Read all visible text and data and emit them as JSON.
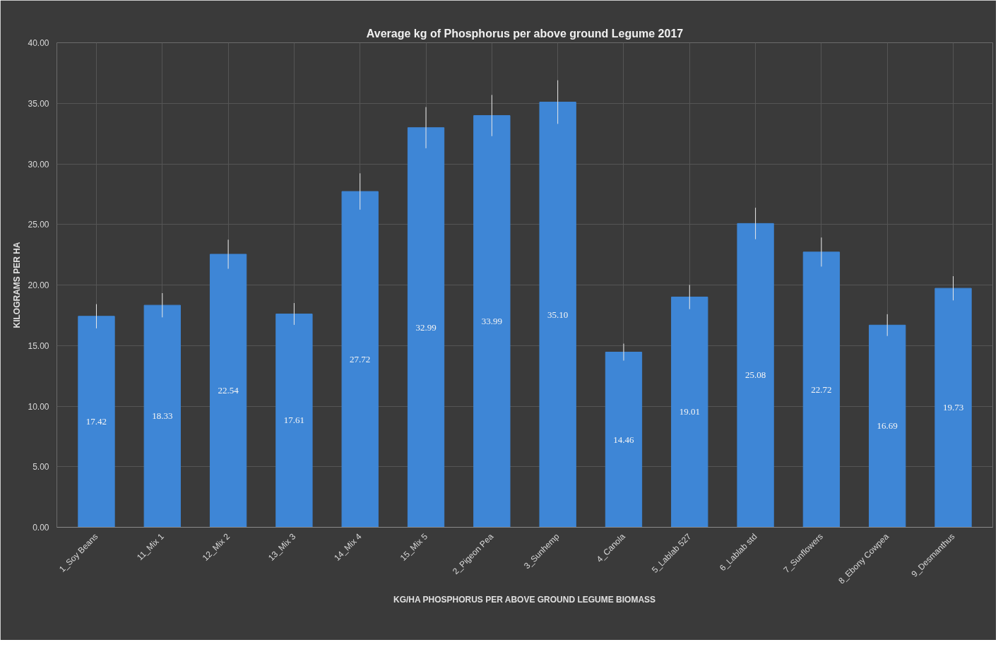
{
  "chart_data": {
    "type": "bar",
    "title": "Average kg of Phosphorus per above ground Legume 2017",
    "xlabel": "KG/HA PHOSPHORUS PER ABOVE GROUND LEGUME BIOMASS",
    "ylabel": "KILOGRAMS PER HA",
    "categories": [
      "1_Soy Beans",
      "11_Mix 1",
      "12_Mix 2",
      "13_Mix 3",
      "14_Mix 4",
      "15_Mix 5",
      "2_Pigeon Pea",
      "3_Sunhemp",
      "4_Canola",
      "5_Lablab 527",
      "6_Lablab std",
      "7_Sunflowers",
      "8_Ebony Cowpea",
      "9_Desmanthus"
    ],
    "values": [
      17.42,
      18.33,
      22.54,
      17.61,
      27.72,
      32.99,
      33.99,
      35.1,
      14.46,
      19.01,
      25.08,
      22.72,
      16.69,
      19.73
    ],
    "value_labels": [
      "17.42",
      "18.33",
      "22.54",
      "17.61",
      "27.72",
      "32.99",
      "33.99",
      "35.10",
      "14.46",
      "19.01",
      "25.08",
      "22.72",
      "16.69",
      "19.73"
    ],
    "errors": [
      1.0,
      1.0,
      1.2,
      0.9,
      1.5,
      1.7,
      1.7,
      1.8,
      0.7,
      1.0,
      1.3,
      1.2,
      0.9,
      1.0
    ],
    "color": "#3e86d6",
    "ylim": [
      0,
      40
    ],
    "yticks": [
      {
        "value": 0,
        "label": "0.00"
      },
      {
        "value": 5,
        "label": "5.00"
      },
      {
        "value": 10,
        "label": "10.00"
      },
      {
        "value": 15,
        "label": "15.00"
      },
      {
        "value": 20,
        "label": "20.00"
      },
      {
        "value": 25,
        "label": "25.00"
      },
      {
        "value": 30,
        "label": "30.00"
      },
      {
        "value": 35,
        "label": "35.00"
      },
      {
        "value": 40,
        "label": "40.00"
      }
    ],
    "grid": true
  }
}
